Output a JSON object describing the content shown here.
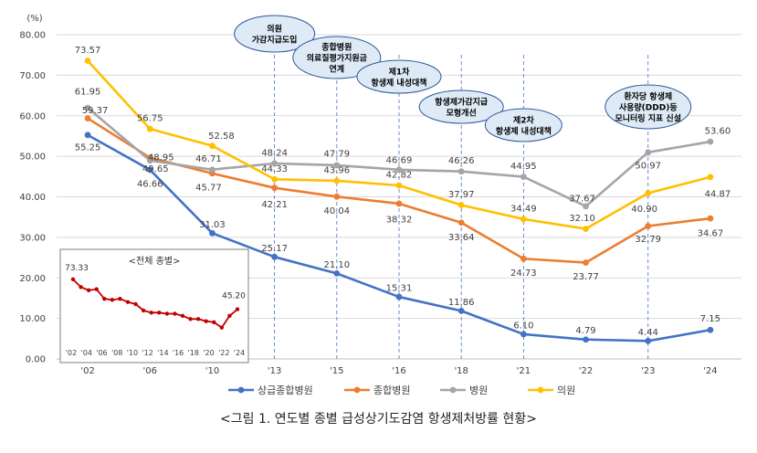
{
  "chart_data": {
    "type": "line",
    "unit_label": "(%)",
    "ylim": [
      0,
      80
    ],
    "yticks": [
      "0.00",
      "10.00",
      "20.00",
      "30.00",
      "40.00",
      "50.00",
      "60.00",
      "70.00",
      "80.00"
    ],
    "x": [
      "'02",
      "'06",
      "'10",
      "'13",
      "'15",
      "'16",
      "'18",
      "'21",
      "'22",
      "'23",
      "'24"
    ],
    "series": [
      {
        "name": "상급종합병원",
        "color": "#4472C4",
        "values": [
          55.25,
          46.66,
          31.03,
          25.17,
          21.1,
          15.31,
          11.86,
          6.1,
          4.79,
          4.44,
          7.15
        ],
        "labels": [
          "55.25",
          "46.66",
          "31.03",
          "25.17",
          "21.10",
          "15.31",
          "11.86",
          "6.10",
          "4.79",
          "4.44",
          "7.15"
        ]
      },
      {
        "name": "종합병원",
        "color": "#ED7D31",
        "values": [
          59.37,
          49.65,
          45.77,
          42.21,
          40.04,
          38.32,
          33.64,
          24.73,
          23.77,
          32.79,
          34.67
        ],
        "labels": [
          "59.37",
          "49.65",
          "45.77",
          "42.21",
          "40.04",
          "38.32",
          "33.64",
          "24.73",
          "23.77",
          "32.79",
          "34.67"
        ]
      },
      {
        "name": "병원",
        "color": "#A5A5A5",
        "values": [
          61.95,
          48.95,
          46.71,
          48.24,
          47.79,
          46.69,
          46.26,
          44.95,
          37.67,
          50.97,
          53.6
        ],
        "labels": [
          "61.95",
          "48.95",
          "46.71",
          "48.24",
          "47.79",
          "46.69",
          "46.26",
          "44.95",
          "37.67",
          "50.97",
          "53.60"
        ]
      },
      {
        "name": "의원",
        "color": "#FFC000",
        "values": [
          73.57,
          56.75,
          52.58,
          44.33,
          43.96,
          42.82,
          37.97,
          34.49,
          32.1,
          40.9,
          44.87
        ],
        "labels": [
          "73.57",
          "56.75",
          "52.58",
          "44.33",
          "43.96",
          "42.82",
          "37.97",
          "34.49",
          "32.10",
          "40.90",
          "44.87"
        ]
      }
    ],
    "annotations": [
      {
        "x_index": 3,
        "lines": [
          "의원",
          "가감지급도입"
        ]
      },
      {
        "x_index": 4,
        "lines": [
          "종합병원",
          "의료질평가지원금",
          "연계"
        ]
      },
      {
        "x_index": 5,
        "lines": [
          "제1차",
          "항생제 내성대책"
        ]
      },
      {
        "x_index": 6,
        "lines": [
          "항생제가감지급",
          "모형개선"
        ]
      },
      {
        "x_index": 7,
        "lines": [
          "제2차",
          "항생제 내성대책"
        ]
      },
      {
        "x_index": 9,
        "lines": [
          "환자당 항생제",
          "사용량(DDD)등",
          "모니터링 지표 신설"
        ]
      }
    ],
    "inset": {
      "title": "<전체 종별>",
      "color": "#C00000",
      "x_labels": [
        "'02",
        "'04",
        "'06",
        "'08",
        "'10",
        "'12",
        "'14",
        "'16",
        "'18",
        "'20",
        "'22",
        "'24"
      ],
      "values": [
        73.33,
        66,
        63,
        64,
        55,
        54,
        55,
        52,
        50,
        44,
        42,
        42,
        41,
        41,
        39,
        36,
        36,
        34,
        33,
        28,
        39,
        45.2
      ],
      "first_label": "73.33",
      "last_label": "45.20"
    }
  },
  "caption": "<그림 1. 연도별 종별 급성상기도감염 항생제처방률 현황>"
}
